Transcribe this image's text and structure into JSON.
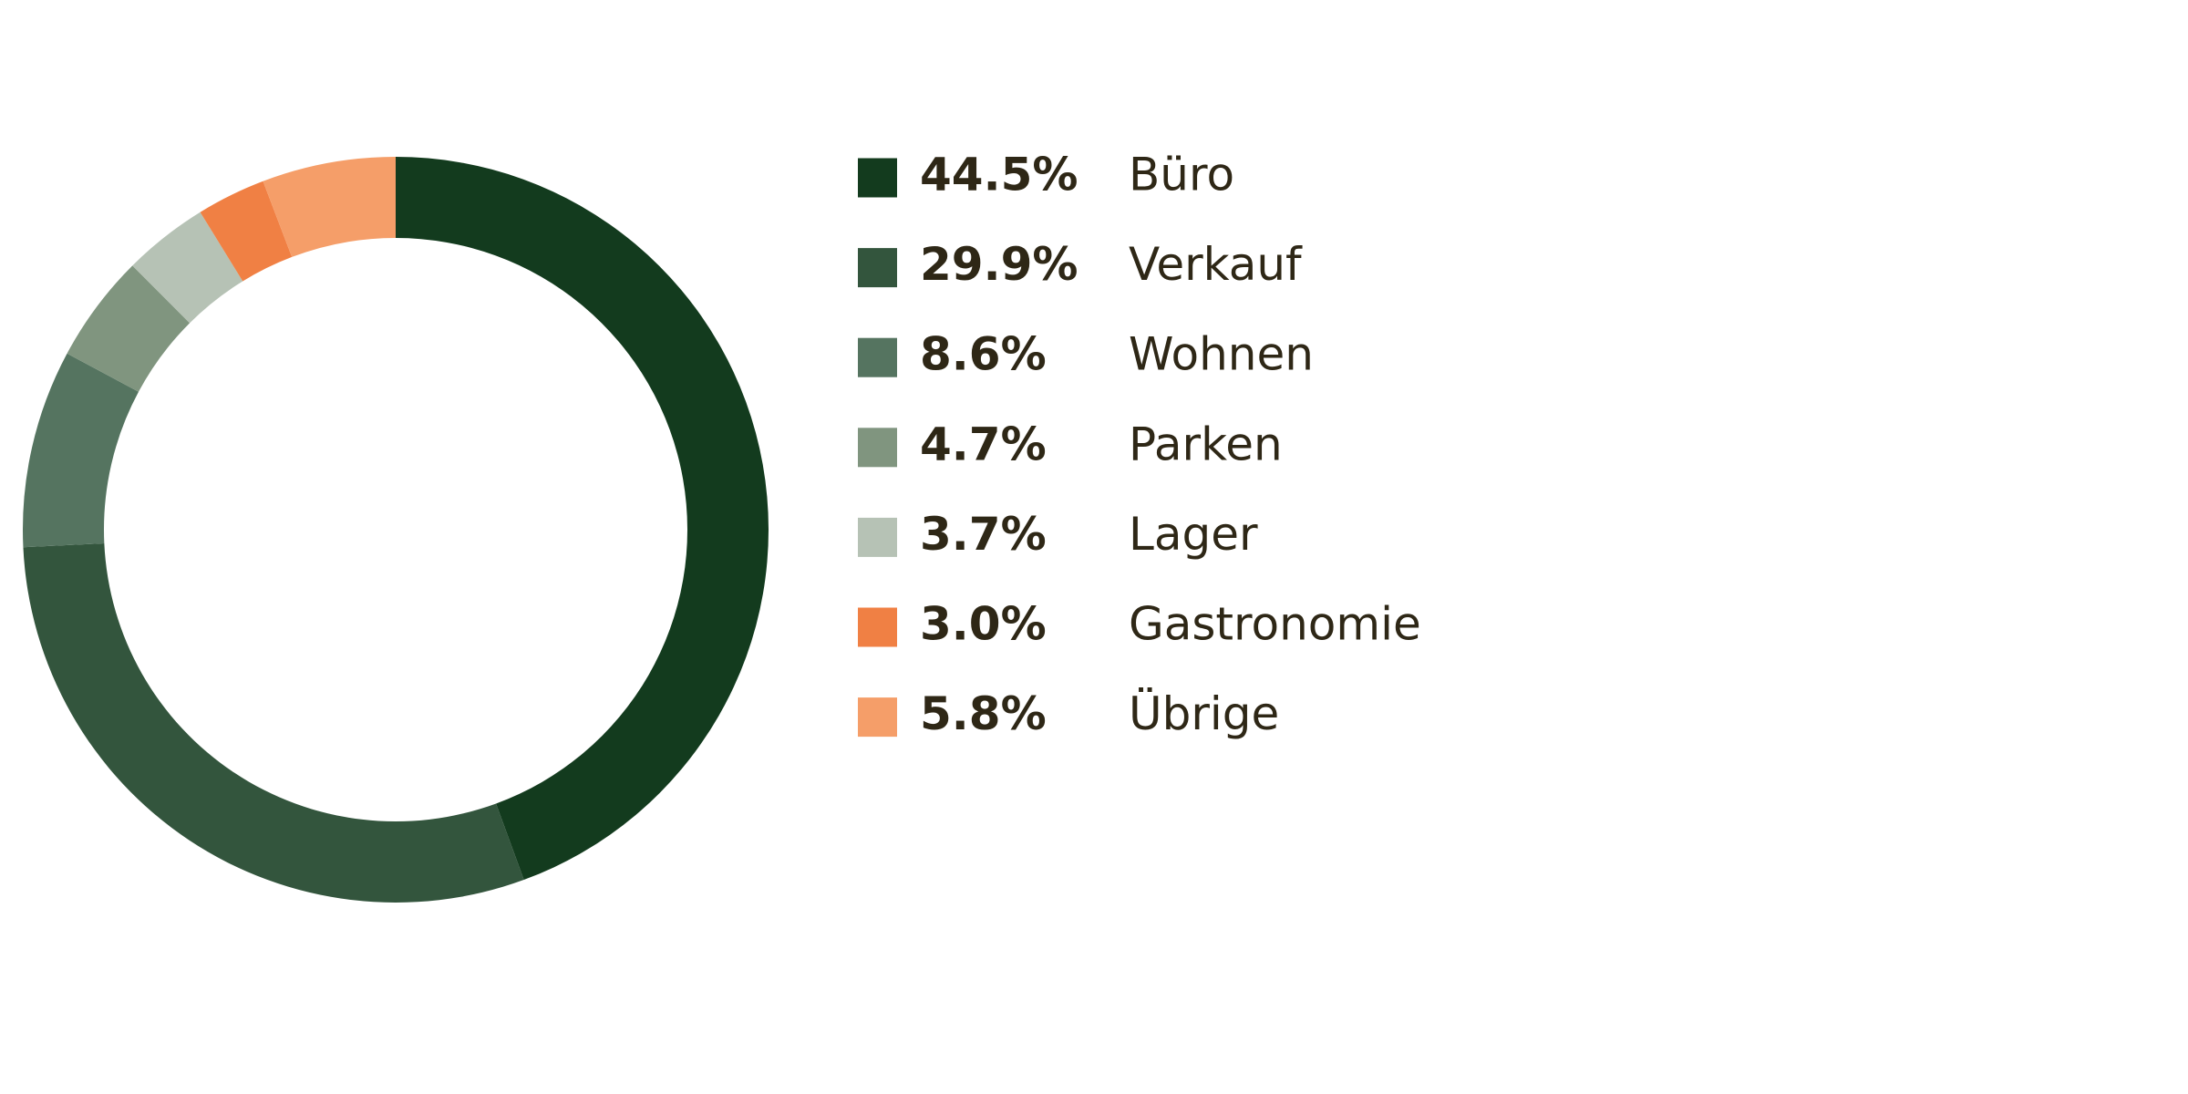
{
  "chart_data": {
    "type": "donut",
    "categories": [
      "Büro",
      "Verkauf",
      "Wohnen",
      "Parken",
      "Lager",
      "Gastronomie",
      "Übrige"
    ],
    "values": [
      44.5,
      29.9,
      8.6,
      4.7,
      3.7,
      3.0,
      5.8
    ],
    "value_labels": [
      "44.5%",
      "29.9%",
      "8.6%",
      "4.7%",
      "3.7%",
      "3.0%",
      "5.8%"
    ],
    "colors": [
      "#133b1e",
      "#33553d",
      "#557460",
      "#80957f",
      "#b6c2b5",
      "#f08044",
      "#f59e69"
    ]
  }
}
